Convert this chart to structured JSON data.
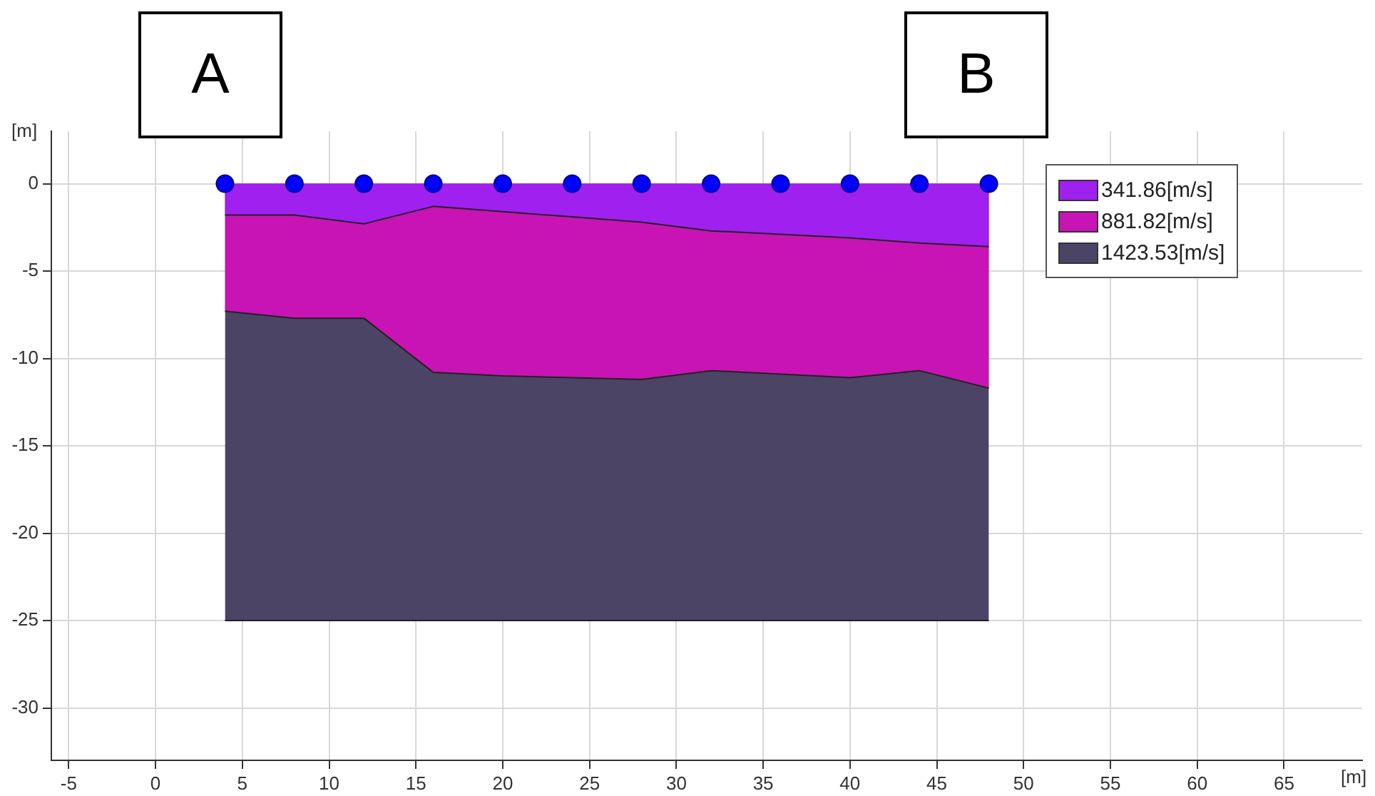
{
  "chart_data": {
    "type": "area",
    "xlabel": "[m]",
    "ylabel": "[m]",
    "annotations": [
      "A",
      "B"
    ],
    "xlim": [
      -6,
      69.5
    ],
    "ylim": [
      -33,
      3
    ],
    "xticks": [
      -5,
      0,
      5,
      10,
      15,
      20,
      25,
      30,
      35,
      40,
      45,
      50,
      55,
      60,
      65
    ],
    "yticks": [
      0,
      -5,
      -10,
      -15,
      -20,
      -25,
      -30
    ],
    "grid": true,
    "legend": "top right",
    "x": [
      4,
      8,
      12,
      16,
      20,
      24,
      28,
      32,
      36,
      40,
      44,
      48
    ],
    "series": [
      {
        "name": "341.86[m/s]",
        "color": "#a020f0",
        "values": [
          -1.8,
          -1.8,
          -2.3,
          -1.3,
          -1.6,
          -1.9,
          -2.2,
          -2.7,
          -2.9,
          -3.1,
          -3.4,
          -3.6
        ]
      },
      {
        "name": "881.82[m/s]",
        "color": "#c814b4",
        "values": [
          -7.3,
          -7.7,
          -7.7,
          -10.8,
          -11.0,
          -11.1,
          -11.2,
          -10.7,
          -10.9,
          -11.1,
          -10.7,
          -11.7
        ]
      },
      {
        "name": "1423.53[m/s]",
        "color": "#4b4464",
        "values": [
          -25,
          -25,
          -25,
          -25,
          -25,
          -25,
          -25,
          -25,
          -25,
          -25,
          -25,
          -25
        ]
      },
      {
        "type": "scatter",
        "color": "#0000ff",
        "marker": "circle",
        "values": [
          0,
          0,
          0,
          0,
          0,
          0,
          0,
          0,
          0,
          0,
          0,
          0
        ]
      }
    ]
  }
}
